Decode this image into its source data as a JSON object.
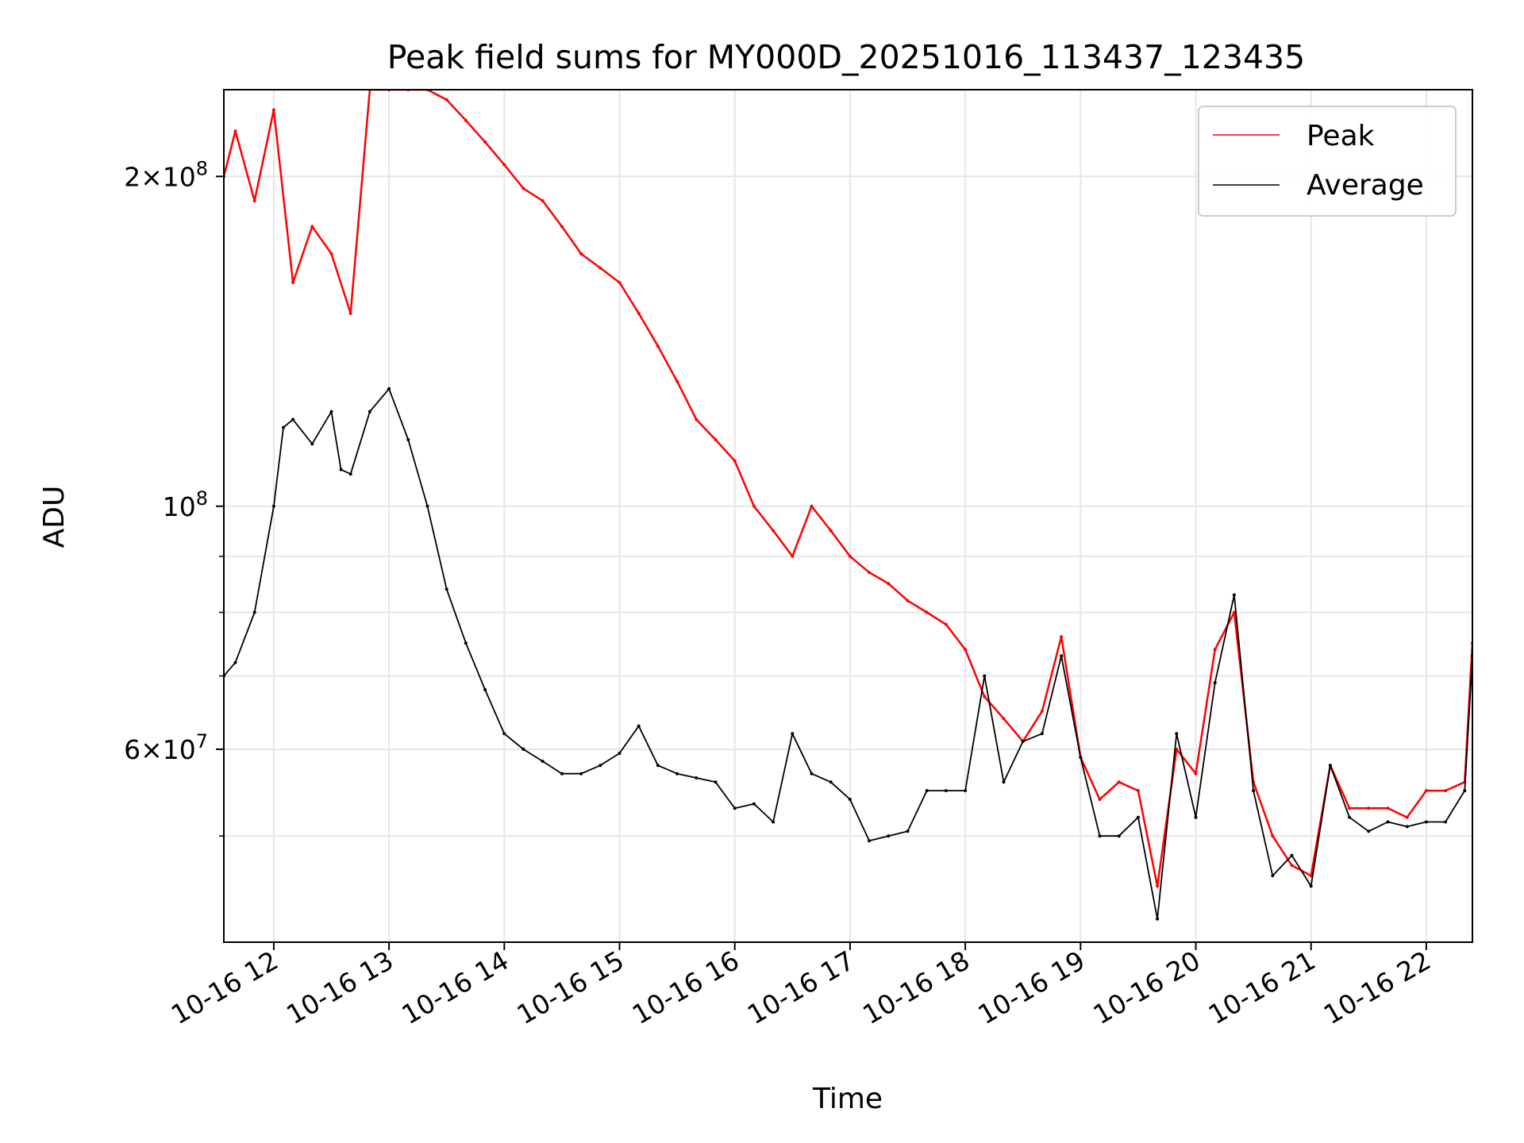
{
  "chart_data": {
    "type": "line",
    "title": "Peak field sums for MY000D_20251016_113437_123435",
    "xlabel": "Time",
    "ylabel": "ADU",
    "y_scale": "log",
    "ylim": [
      40000000,
      240000000
    ],
    "xlim": [
      "2025-10-16 11:34",
      "2025-10-16 22:24"
    ],
    "grid": true,
    "legend": {
      "position": "top-right",
      "entries": [
        "Peak",
        "Average"
      ]
    },
    "x_ticks": [
      {
        "value": "2025-10-16 12:00",
        "label": "10-16 12"
      },
      {
        "value": "2025-10-16 13:00",
        "label": "10-16 13"
      },
      {
        "value": "2025-10-16 14:00",
        "label": "10-16 14"
      },
      {
        "value": "2025-10-16 15:00",
        "label": "10-16 15"
      },
      {
        "value": "2025-10-16 16:00",
        "label": "10-16 16"
      },
      {
        "value": "2025-10-16 17:00",
        "label": "10-16 17"
      },
      {
        "value": "2025-10-16 18:00",
        "label": "10-16 18"
      },
      {
        "value": "2025-10-16 19:00",
        "label": "10-16 19"
      },
      {
        "value": "2025-10-16 20:00",
        "label": "10-16 20"
      },
      {
        "value": "2025-10-16 21:00",
        "label": "10-16 21"
      },
      {
        "value": "2025-10-16 22:00",
        "label": "10-16 22"
      }
    ],
    "y_major_ticks": [
      {
        "value": 60000000,
        "mantissa": "6",
        "exponent": "7"
      },
      {
        "value": 100000000,
        "mantissa": "",
        "exponent": "8"
      },
      {
        "value": 200000000,
        "mantissa": "2",
        "exponent": "8"
      }
    ],
    "y_minor_ticks": [
      50000000,
      70000000,
      80000000,
      90000000
    ],
    "tick_base": "10",
    "tick_times": "×",
    "series": [
      {
        "name": "Peak",
        "color": "#ff0000",
        "x": [
          "2025-10-16 11:34",
          "2025-10-16 11:40",
          "2025-10-16 11:50",
          "2025-10-16 12:00",
          "2025-10-16 12:10",
          "2025-10-16 12:20",
          "2025-10-16 12:30",
          "2025-10-16 12:40",
          "2025-10-16 12:50",
          "2025-10-16 13:00",
          "2025-10-16 13:10",
          "2025-10-16 13:20",
          "2025-10-16 13:30",
          "2025-10-16 13:40",
          "2025-10-16 13:50",
          "2025-10-16 14:00",
          "2025-10-16 14:10",
          "2025-10-16 14:20",
          "2025-10-16 14:30",
          "2025-10-16 14:40",
          "2025-10-16 14:50",
          "2025-10-16 15:00",
          "2025-10-16 15:10",
          "2025-10-16 15:20",
          "2025-10-16 15:30",
          "2025-10-16 15:40",
          "2025-10-16 15:50",
          "2025-10-16 16:00",
          "2025-10-16 16:10",
          "2025-10-16 16:20",
          "2025-10-16 16:30",
          "2025-10-16 16:40",
          "2025-10-16 16:50",
          "2025-10-16 17:00",
          "2025-10-16 17:10",
          "2025-10-16 17:20",
          "2025-10-16 17:30",
          "2025-10-16 17:40",
          "2025-10-16 17:50",
          "2025-10-16 18:00",
          "2025-10-16 18:10",
          "2025-10-16 18:20",
          "2025-10-16 18:30",
          "2025-10-16 18:40",
          "2025-10-16 18:50",
          "2025-10-16 19:00",
          "2025-10-16 19:10",
          "2025-10-16 19:20",
          "2025-10-16 19:30",
          "2025-10-16 19:40",
          "2025-10-16 19:50",
          "2025-10-16 20:00",
          "2025-10-16 20:10",
          "2025-10-16 20:20",
          "2025-10-16 20:30",
          "2025-10-16 20:40",
          "2025-10-16 20:50",
          "2025-10-16 21:00",
          "2025-10-16 21:10",
          "2025-10-16 21:20",
          "2025-10-16 21:30",
          "2025-10-16 21:40",
          "2025-10-16 21:50",
          "2025-10-16 22:00",
          "2025-10-16 22:10",
          "2025-10-16 22:20",
          "2025-10-16 22:24"
        ],
        "values": [
          200000000,
          220000000,
          190000000,
          230000000,
          160000000,
          180000000,
          170000000,
          150000000,
          240000000,
          240000000,
          240000000,
          240000000,
          235000000,
          225000000,
          215000000,
          205000000,
          195000000,
          190000000,
          180000000,
          170000000,
          165000000,
          160000000,
          150000000,
          140000000,
          130000000,
          120000000,
          115000000,
          110000000,
          100000000,
          95000000,
          90000000,
          100000000,
          95000000,
          90000000,
          87000000,
          85000000,
          82000000,
          80000000,
          78000000,
          74000000,
          67000000,
          64000000,
          61000000,
          65000000,
          76000000,
          59000000,
          54000000,
          56000000,
          55000000,
          45000000,
          60000000,
          57000000,
          74000000,
          80000000,
          56000000,
          50000000,
          47000000,
          46000000,
          58000000,
          53000000,
          53000000,
          53000000,
          52000000,
          55000000,
          55000000,
          56000000,
          75000000
        ]
      },
      {
        "name": "Average",
        "color": "#000000",
        "x": [
          "2025-10-16 11:34",
          "2025-10-16 11:40",
          "2025-10-16 11:50",
          "2025-10-16 12:00",
          "2025-10-16 12:05",
          "2025-10-16 12:10",
          "2025-10-16 12:20",
          "2025-10-16 12:30",
          "2025-10-16 12:35",
          "2025-10-16 12:40",
          "2025-10-16 12:50",
          "2025-10-16 13:00",
          "2025-10-16 13:10",
          "2025-10-16 13:20",
          "2025-10-16 13:30",
          "2025-10-16 13:40",
          "2025-10-16 13:50",
          "2025-10-16 14:00",
          "2025-10-16 14:10",
          "2025-10-16 14:20",
          "2025-10-16 14:30",
          "2025-10-16 14:40",
          "2025-10-16 14:50",
          "2025-10-16 15:00",
          "2025-10-16 15:10",
          "2025-10-16 15:20",
          "2025-10-16 15:30",
          "2025-10-16 15:40",
          "2025-10-16 15:50",
          "2025-10-16 16:00",
          "2025-10-16 16:10",
          "2025-10-16 16:20",
          "2025-10-16 16:30",
          "2025-10-16 16:40",
          "2025-10-16 16:50",
          "2025-10-16 17:00",
          "2025-10-16 17:10",
          "2025-10-16 17:20",
          "2025-10-16 17:30",
          "2025-10-16 17:40",
          "2025-10-16 17:50",
          "2025-10-16 18:00",
          "2025-10-16 18:10",
          "2025-10-16 18:20",
          "2025-10-16 18:30",
          "2025-10-16 18:40",
          "2025-10-16 18:50",
          "2025-10-16 19:00",
          "2025-10-16 19:10",
          "2025-10-16 19:20",
          "2025-10-16 19:30",
          "2025-10-16 19:40",
          "2025-10-16 19:50",
          "2025-10-16 20:00",
          "2025-10-16 20:10",
          "2025-10-16 20:20",
          "2025-10-16 20:30",
          "2025-10-16 20:40",
          "2025-10-16 20:50",
          "2025-10-16 21:00",
          "2025-10-16 21:10",
          "2025-10-16 21:20",
          "2025-10-16 21:30",
          "2025-10-16 21:40",
          "2025-10-16 21:50",
          "2025-10-16 22:00",
          "2025-10-16 22:10",
          "2025-10-16 22:20",
          "2025-10-16 22:24"
        ],
        "values": [
          70000000,
          72000000,
          80000000,
          100000000,
          118000000,
          120000000,
          114000000,
          122000000,
          108000000,
          107000000,
          122000000,
          128000000,
          115000000,
          100000000,
          84000000,
          75000000,
          68000000,
          62000000,
          60000000,
          58500000,
          57000000,
          57000000,
          58000000,
          59500000,
          63000000,
          58000000,
          57000000,
          56500000,
          56000000,
          53000000,
          53500000,
          51500000,
          62000000,
          57000000,
          56000000,
          54000000,
          49500000,
          50000000,
          50500000,
          55000000,
          55000000,
          55000000,
          70000000,
          56000000,
          61000000,
          62000000,
          73000000,
          59000000,
          50000000,
          50000000,
          52000000,
          42000000,
          62000000,
          52000000,
          69000000,
          83000000,
          55000000,
          46000000,
          48000000,
          45000000,
          58000000,
          52000000,
          50500000,
          51500000,
          51000000,
          51500000,
          51500000,
          55000000,
          73000000
        ]
      }
    ]
  }
}
